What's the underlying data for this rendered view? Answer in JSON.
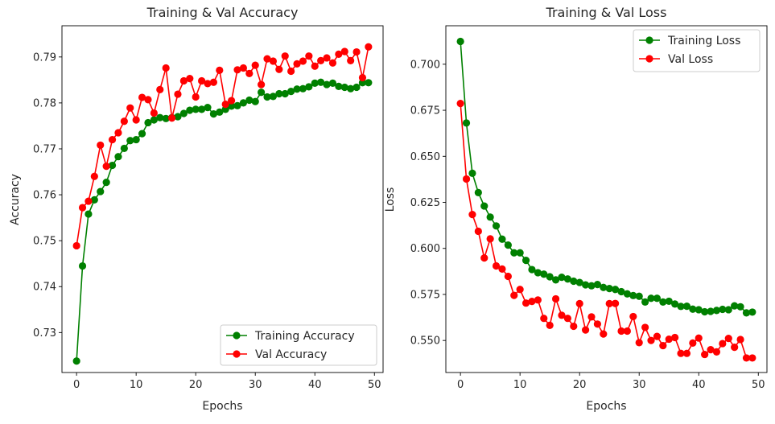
{
  "chart_data": [
    {
      "type": "line",
      "title": "Training & Val Accuracy",
      "xlabel": "Epochs",
      "ylabel": "Accuracy",
      "xlim": [
        -2.45,
        51.45
      ],
      "ylim": [
        0.7213,
        0.7968
      ],
      "xticks": [
        0,
        10,
        20,
        30,
        40,
        50
      ],
      "yticks": [
        0.73,
        0.74,
        0.75,
        0.76,
        0.77,
        0.78,
        0.79
      ],
      "ytick_labels": [
        "0.73",
        "0.74",
        "0.75",
        "0.76",
        "0.77",
        "0.78",
        "0.79"
      ],
      "legend_position": "lower right",
      "grid": false,
      "series": [
        {
          "name": "Training Accuracy",
          "color": "#008000",
          "x": [
            0,
            1,
            2,
            3,
            4,
            5,
            6,
            7,
            8,
            9,
            10,
            11,
            12,
            13,
            14,
            15,
            16,
            17,
            18,
            19,
            20,
            21,
            22,
            23,
            24,
            25,
            26,
            27,
            28,
            29,
            30,
            31,
            32,
            33,
            34,
            35,
            36,
            37,
            38,
            39,
            40,
            41,
            42,
            43,
            44,
            45,
            46,
            47,
            48,
            49
          ],
          "values": [
            0.7238,
            0.7445,
            0.7558,
            0.7589,
            0.7607,
            0.7627,
            0.7664,
            0.7683,
            0.7701,
            0.7718,
            0.772,
            0.7733,
            0.7757,
            0.7763,
            0.7768,
            0.7766,
            0.7768,
            0.777,
            0.7777,
            0.7784,
            0.7786,
            0.7786,
            0.779,
            0.7776,
            0.778,
            0.7786,
            0.7793,
            0.7794,
            0.78,
            0.7806,
            0.7803,
            0.7823,
            0.7813,
            0.7814,
            0.782,
            0.782,
            0.7825,
            0.783,
            0.7831,
            0.7835,
            0.7843,
            0.7845,
            0.784,
            0.7843,
            0.7836,
            0.7834,
            0.7831,
            0.7834,
            0.7844,
            0.7844
          ]
        },
        {
          "name": "Val Accuracy",
          "color": "#ff0000",
          "x": [
            0,
            1,
            2,
            3,
            4,
            5,
            6,
            7,
            8,
            9,
            10,
            11,
            12,
            13,
            14,
            15,
            16,
            17,
            18,
            19,
            20,
            21,
            22,
            23,
            24,
            25,
            26,
            27,
            28,
            29,
            30,
            31,
            32,
            33,
            34,
            35,
            36,
            37,
            38,
            39,
            40,
            41,
            42,
            43,
            44,
            45,
            46,
            47,
            48,
            49
          ],
          "values": [
            0.7489,
            0.7572,
            0.7586,
            0.764,
            0.7708,
            0.7662,
            0.772,
            0.7735,
            0.776,
            0.7789,
            0.7763,
            0.7812,
            0.7807,
            0.7778,
            0.7829,
            0.7876,
            0.7767,
            0.7819,
            0.7848,
            0.7853,
            0.7813,
            0.7848,
            0.7842,
            0.7845,
            0.7871,
            0.7797,
            0.7805,
            0.7872,
            0.7876,
            0.7864,
            0.7882,
            0.784,
            0.7896,
            0.7891,
            0.7873,
            0.7902,
            0.7869,
            0.7885,
            0.7891,
            0.7902,
            0.788,
            0.7892,
            0.7898,
            0.7887,
            0.7906,
            0.7912,
            0.7892,
            0.7911,
            0.7855,
            0.7922
          ]
        }
      ]
    },
    {
      "type": "line",
      "title": "Training & Val Loss",
      "xlabel": "Epochs",
      "ylabel": "Loss",
      "xlim": [
        -2.45,
        51.45
      ],
      "ylim": [
        0.5326,
        0.7209
      ],
      "xticks": [
        0,
        10,
        20,
        30,
        40,
        50
      ],
      "yticks": [
        0.55,
        0.575,
        0.6,
        0.625,
        0.65,
        0.675,
        0.7
      ],
      "ytick_labels": [
        "0.550",
        "0.575",
        "0.600",
        "0.625",
        "0.650",
        "0.675",
        "0.700"
      ],
      "legend_position": "upper right",
      "grid": false,
      "series": [
        {
          "name": "Training Loss",
          "color": "#008000",
          "x": [
            0,
            1,
            2,
            3,
            4,
            5,
            6,
            7,
            8,
            9,
            10,
            11,
            12,
            13,
            14,
            15,
            16,
            17,
            18,
            19,
            20,
            21,
            22,
            23,
            24,
            25,
            26,
            27,
            28,
            29,
            30,
            31,
            32,
            33,
            34,
            35,
            36,
            37,
            38,
            39,
            40,
            41,
            42,
            43,
            44,
            45,
            46,
            47,
            48,
            49
          ],
          "values": [
            0.7124,
            0.6681,
            0.6408,
            0.6303,
            0.623,
            0.617,
            0.6122,
            0.605,
            0.6018,
            0.5976,
            0.5976,
            0.5935,
            0.5885,
            0.5868,
            0.586,
            0.5846,
            0.5829,
            0.5843,
            0.5834,
            0.5822,
            0.5815,
            0.5802,
            0.5797,
            0.5804,
            0.5788,
            0.5782,
            0.5777,
            0.5765,
            0.5753,
            0.5744,
            0.574,
            0.5709,
            0.5729,
            0.5729,
            0.5709,
            0.5713,
            0.5698,
            0.5685,
            0.5686,
            0.567,
            0.5667,
            0.5656,
            0.5658,
            0.5663,
            0.5669,
            0.5667,
            0.5688,
            0.5683,
            0.565,
            0.5654
          ]
        },
        {
          "name": "Val Loss",
          "color": "#ff0000",
          "x": [
            0,
            1,
            2,
            3,
            4,
            5,
            6,
            7,
            8,
            9,
            10,
            11,
            12,
            13,
            14,
            15,
            16,
            17,
            18,
            19,
            20,
            21,
            22,
            23,
            24,
            25,
            26,
            27,
            28,
            29,
            30,
            31,
            32,
            33,
            34,
            35,
            36,
            37,
            38,
            39,
            40,
            41,
            42,
            43,
            44,
            45,
            46,
            47,
            48,
            49
          ],
          "values": [
            0.6787,
            0.6377,
            0.6184,
            0.6093,
            0.5948,
            0.6052,
            0.5905,
            0.5888,
            0.5848,
            0.5745,
            0.5777,
            0.5703,
            0.5712,
            0.572,
            0.562,
            0.5582,
            0.5726,
            0.5637,
            0.562,
            0.5577,
            0.57,
            0.5557,
            0.5628,
            0.5589,
            0.5535,
            0.57,
            0.5701,
            0.5551,
            0.5551,
            0.563,
            0.5488,
            0.5571,
            0.55,
            0.5522,
            0.5472,
            0.5507,
            0.5516,
            0.543,
            0.543,
            0.5486,
            0.5513,
            0.5424,
            0.545,
            0.5438,
            0.5483,
            0.5511,
            0.5463,
            0.5505,
            0.5405,
            0.5405
          ]
        }
      ]
    }
  ]
}
